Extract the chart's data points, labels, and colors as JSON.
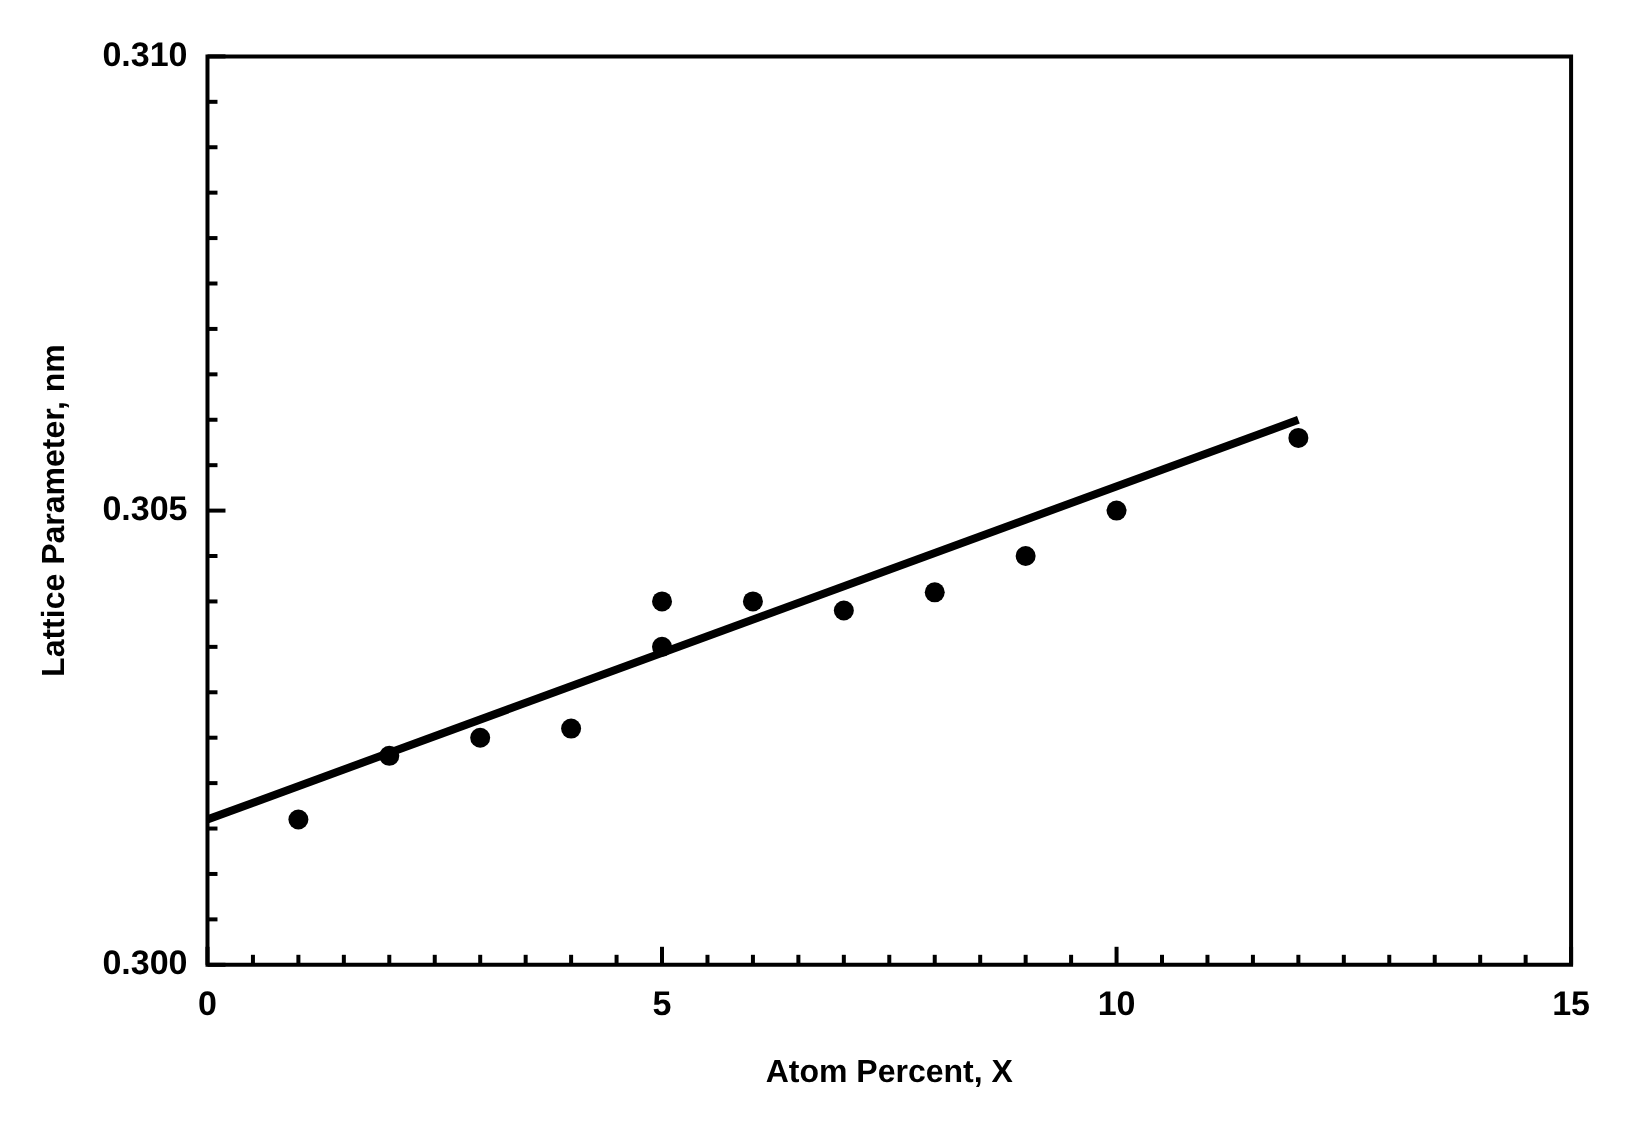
{
  "chart_data": {
    "type": "scatter",
    "xlabel": "Atom Percent, X",
    "ylabel": "Lattice Parameter, nm",
    "xlim": [
      0,
      15
    ],
    "ylim": [
      0.3,
      0.31
    ],
    "xticks": [
      0,
      {
        "value": 0.5,
        "label": null
      },
      {
        "value": 1,
        "label": null
      },
      {
        "value": 1.5,
        "label": null
      },
      {
        "value": 2,
        "label": null
      },
      {
        "value": 2.5,
        "label": null
      },
      {
        "value": 3,
        "label": null
      },
      {
        "value": 3.5,
        "label": null
      },
      {
        "value": 4,
        "label": null
      },
      {
        "value": 4.5,
        "label": null
      },
      5,
      {
        "value": 5.5,
        "label": null
      },
      {
        "value": 6,
        "label": null
      },
      {
        "value": 6.5,
        "label": null
      },
      {
        "value": 7,
        "label": null
      },
      {
        "value": 7.5,
        "label": null
      },
      {
        "value": 8,
        "label": null
      },
      {
        "value": 8.5,
        "label": null
      },
      {
        "value": 9,
        "label": null
      },
      {
        "value": 9.5,
        "label": null
      },
      10,
      {
        "value": 10.5,
        "label": null
      },
      {
        "value": 11,
        "label": null
      },
      {
        "value": 11.5,
        "label": null
      },
      {
        "value": 12,
        "label": null
      },
      {
        "value": 12.5,
        "label": null
      },
      {
        "value": 13,
        "label": null
      },
      {
        "value": 13.5,
        "label": null
      },
      {
        "value": 14,
        "label": null
      },
      {
        "value": 14.5,
        "label": null
      },
      15
    ],
    "yticks": [
      {
        "value": 0.3,
        "label": "0.300"
      },
      {
        "value": 0.3005,
        "label": null
      },
      {
        "value": 0.301,
        "label": null
      },
      {
        "value": 0.3015,
        "label": null
      },
      {
        "value": 0.302,
        "label": null
      },
      {
        "value": 0.3025,
        "label": null
      },
      {
        "value": 0.303,
        "label": null
      },
      {
        "value": 0.3035,
        "label": null
      },
      {
        "value": 0.304,
        "label": null
      },
      {
        "value": 0.3045,
        "label": null
      },
      0.305,
      {
        "value": 0.3055,
        "label": null
      },
      {
        "value": 0.306,
        "label": null
      },
      {
        "value": 0.3065,
        "label": null
      },
      {
        "value": 0.307,
        "label": null
      },
      {
        "value": 0.3075,
        "label": null
      },
      {
        "value": 0.308,
        "label": null
      },
      {
        "value": 0.3085,
        "label": null
      },
      {
        "value": 0.309,
        "label": null
      },
      {
        "value": 0.3095,
        "label": null
      },
      {
        "value": 0.31,
        "label": "0.310"
      }
    ],
    "grid": false,
    "legend": false,
    "marker": "circle",
    "series": [
      {
        "color": "#000000",
        "x": [
          1,
          2,
          3,
          4,
          5,
          5,
          6,
          7,
          8,
          9,
          10,
          12
        ],
        "values": [
          0.3016,
          0.3023,
          0.3025,
          0.3026,
          0.304,
          0.3035,
          0.304,
          0.3039,
          0.3041,
          0.3045,
          0.305,
          0.3058
        ]
      },
      {
        "type": "line",
        "color": "#000000",
        "marker": "none",
        "x": [
          0,
          12
        ],
        "values": [
          0.3016,
          0.306
        ]
      }
    ]
  }
}
